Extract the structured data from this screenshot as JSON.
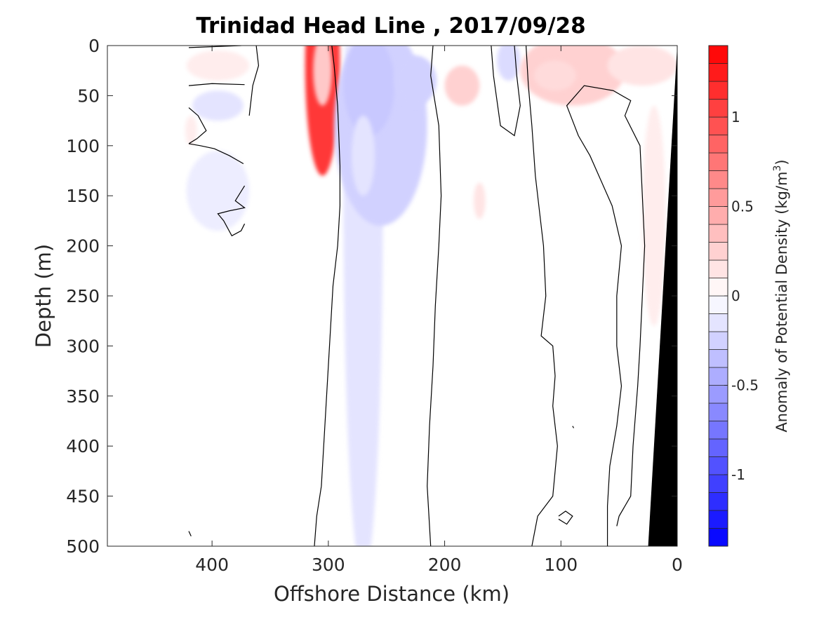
{
  "chart_data": {
    "type": "heatmap",
    "title": "Trinidad Head Line , 2017/09/28",
    "xlabel": "Offshore Distance (km)",
    "ylabel": "Depth (m)",
    "xlim": [
      490,
      0
    ],
    "ylim": [
      500,
      0
    ],
    "x_reversed": true,
    "y_reversed": true,
    "x_ticks": [
      400,
      300,
      200,
      100,
      0
    ],
    "x_tick_labels": [
      "400",
      "300",
      "200",
      "100",
      "0"
    ],
    "y_ticks": [
      0,
      50,
      100,
      150,
      200,
      250,
      300,
      350,
      400,
      450,
      500
    ],
    "y_tick_labels": [
      "0",
      "50",
      "100",
      "150",
      "200",
      "250",
      "300",
      "350",
      "400",
      "450",
      "500"
    ],
    "grid": false,
    "colorbar": {
      "label_main": "Anomaly of Potential Density (kg/m",
      "label_sup": "3",
      "label_end": ")",
      "range": [
        -1.4,
        1.4
      ],
      "step": 0.1,
      "ticks": [
        1,
        0.5,
        0,
        -0.5,
        -1
      ],
      "tick_labels": [
        "1",
        "0.5",
        "0",
        "-0.5",
        "-1"
      ],
      "colormap": "blue-white-red",
      "neg_color": "#0000ff",
      "zero_color": "#ffffff",
      "pos_color": "#ff0000"
    },
    "anomalies": [
      {
        "name": "positive-anomaly",
        "x": 305,
        "depth": 20,
        "rx": 15,
        "ry": 110,
        "value": 1.1
      },
      {
        "name": "positive-anomaly",
        "x": 305,
        "depth": 25,
        "rx": 8,
        "ry": 35,
        "value": 0.3
      },
      {
        "name": "negative-anomaly",
        "x": 270,
        "depth": 150,
        "rx": 17,
        "ry": 380,
        "value": -0.15
      },
      {
        "name": "negative-anomaly",
        "x": 255,
        "depth": 80,
        "rx": 40,
        "ry": 100,
        "value": -0.25
      },
      {
        "name": "negative-anomaly",
        "x": 265,
        "depth": 40,
        "rx": 22,
        "ry": 50,
        "value": -0.3
      },
      {
        "name": "negative-anomaly",
        "x": 225,
        "depth": 35,
        "rx": 18,
        "ry": 25,
        "value": -0.25
      },
      {
        "name": "negative-anomaly",
        "x": 270,
        "depth": 110,
        "rx": 10,
        "ry": 40,
        "value": -0.15
      },
      {
        "name": "positive-anomaly",
        "x": 185,
        "depth": 40,
        "rx": 15,
        "ry": 20,
        "value": 0.25
      },
      {
        "name": "positive-anomaly",
        "x": 170,
        "depth": 155,
        "rx": 5,
        "ry": 18,
        "value": 0.15
      },
      {
        "name": "negative-anomaly",
        "x": 145,
        "depth": 15,
        "rx": 10,
        "ry": 20,
        "value": -0.2
      },
      {
        "name": "positive-anomaly",
        "x": 90,
        "depth": 25,
        "rx": 45,
        "ry": 35,
        "value": 0.25
      },
      {
        "name": "positive-anomaly",
        "x": 105,
        "depth": 30,
        "rx": 18,
        "ry": 15,
        "value": 0.2
      },
      {
        "name": "positive-anomaly",
        "x": 30,
        "depth": 20,
        "rx": 30,
        "ry": 20,
        "value": 0.15
      },
      {
        "name": "positive-anomaly",
        "x": 20,
        "depth": 170,
        "rx": 10,
        "ry": 110,
        "value": 0.1
      },
      {
        "name": "negative-anomaly",
        "x": 395,
        "depth": 60,
        "rx": 22,
        "ry": 15,
        "value": -0.15
      },
      {
        "name": "negative-anomaly",
        "x": 395,
        "depth": 145,
        "rx": 27,
        "ry": 40,
        "value": -0.1
      },
      {
        "name": "positive-anomaly",
        "x": 395,
        "depth": 20,
        "rx": 27,
        "ry": 15,
        "value": 0.1
      },
      {
        "name": "positive-anomaly",
        "x": 418,
        "depth": 85,
        "rx": 5,
        "ry": 15,
        "value": 0.1
      }
    ],
    "zero_contours": [
      {
        "name": "zero-contour",
        "points": [
          [
            420,
            2
          ],
          [
            375,
            0
          ]
        ]
      },
      {
        "name": "zero-contour",
        "points": [
          [
            420,
            40
          ],
          [
            400,
            38
          ],
          [
            372,
            39
          ]
        ]
      },
      {
        "name": "zero-contour",
        "points": [
          [
            420,
            62
          ],
          [
            412,
            70
          ],
          [
            405,
            85
          ],
          [
            413,
            93
          ],
          [
            420,
            98
          ]
        ]
      },
      {
        "name": "zero-contour",
        "points": [
          [
            420,
            98
          ],
          [
            410,
            100
          ],
          [
            398,
            103
          ],
          [
            385,
            110
          ],
          [
            373,
            118
          ]
        ]
      },
      {
        "name": "zero-contour",
        "points": [
          [
            372,
            140
          ],
          [
            380,
            155
          ],
          [
            372,
            162
          ],
          [
            385,
            165
          ],
          [
            395,
            168
          ],
          [
            390,
            175
          ],
          [
            383,
            190
          ],
          [
            375,
            185
          ],
          [
            372,
            178
          ]
        ]
      },
      {
        "name": "zero-contour",
        "points": [
          [
            420,
            485
          ],
          [
            418,
            490
          ]
        ]
      },
      {
        "name": "zero-contour",
        "points": [
          [
            362,
            0
          ],
          [
            360,
            20
          ],
          [
            365,
            40
          ],
          [
            368,
            70
          ]
        ]
      },
      {
        "name": "zero-contour",
        "points": [
          [
            297,
            0
          ],
          [
            295,
            20
          ],
          [
            292,
            60
          ],
          [
            290,
            120
          ],
          [
            290,
            160
          ],
          [
            292,
            200
          ],
          [
            296,
            240
          ],
          [
            298,
            280
          ],
          [
            300,
            320
          ],
          [
            302,
            360
          ],
          [
            304,
            400
          ],
          [
            306,
            440
          ],
          [
            310,
            470
          ],
          [
            312,
            500
          ]
        ]
      },
      {
        "name": "zero-contour",
        "points": [
          [
            210,
            0
          ],
          [
            212,
            30
          ],
          [
            205,
            80
          ],
          [
            203,
            150
          ],
          [
            205,
            200
          ],
          [
            208,
            260
          ],
          [
            210,
            320
          ],
          [
            213,
            380
          ],
          [
            215,
            440
          ],
          [
            212,
            500
          ]
        ]
      },
      {
        "name": "zero-contour",
        "points": [
          [
            160,
            0
          ],
          [
            158,
            30
          ],
          [
            152,
            80
          ],
          [
            140,
            90
          ],
          [
            135,
            60
          ],
          [
            138,
            30
          ],
          [
            140,
            0
          ]
        ]
      },
      {
        "name": "zero-contour",
        "points": [
          [
            130,
            0
          ],
          [
            128,
            40
          ],
          [
            125,
            80
          ],
          [
            122,
            130
          ],
          [
            118,
            170
          ],
          [
            115,
            200
          ],
          [
            113,
            250
          ],
          [
            117,
            290
          ],
          [
            107,
            300
          ],
          [
            105,
            330
          ],
          [
            107,
            360
          ],
          [
            103,
            400
          ],
          [
            107,
            450
          ],
          [
            120,
            470
          ],
          [
            125,
            500
          ]
        ]
      },
      {
        "name": "zero-contour",
        "points": [
          [
            60,
            500
          ],
          [
            60,
            460
          ],
          [
            58,
            420
          ],
          [
            52,
            380
          ],
          [
            48,
            340
          ],
          [
            52,
            300
          ],
          [
            52,
            250
          ],
          [
            48,
            200
          ],
          [
            56,
            160
          ],
          [
            75,
            110
          ],
          [
            85,
            90
          ],
          [
            95,
            60
          ],
          [
            80,
            40
          ],
          [
            55,
            45
          ],
          [
            40,
            55
          ],
          [
            45,
            70
          ],
          [
            32,
            100
          ],
          [
            30,
            150
          ],
          [
            28,
            200
          ],
          [
            30,
            250
          ],
          [
            32,
            300
          ],
          [
            34,
            340
          ],
          [
            38,
            400
          ],
          [
            40,
            450
          ],
          [
            50,
            470
          ],
          [
            52,
            480
          ]
        ]
      },
      {
        "name": "zero-contour",
        "points": [
          [
            102,
            470
          ],
          [
            96,
            465
          ],
          [
            90,
            470
          ],
          [
            95,
            478
          ],
          [
            102,
            473
          ]
        ]
      },
      {
        "name": "zero-contour",
        "points": [
          [
            90,
            380
          ],
          [
            89,
            382
          ]
        ]
      }
    ],
    "seafloor": {
      "name": "seafloor-bathymetry",
      "points": [
        [
          0,
          0
        ],
        [
          25,
          500
        ],
        [
          0,
          500
        ]
      ]
    }
  }
}
